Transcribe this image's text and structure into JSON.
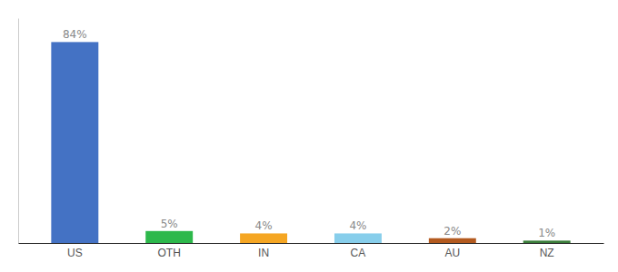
{
  "chart_data": {
    "type": "bar",
    "categories": [
      "US",
      "OTH",
      "IN",
      "CA",
      "AU",
      "NZ"
    ],
    "values": [
      84,
      5,
      4,
      4,
      2,
      1
    ],
    "value_labels": [
      "84%",
      "5%",
      "4%",
      "4%",
      "2%",
      "1%"
    ],
    "colors": [
      "#4472c4",
      "#2db84b",
      "#f5a623",
      "#87ceeb",
      "#b35a1f",
      "#3a7d3a"
    ],
    "ylim": [
      0,
      94
    ],
    "data_labels": true,
    "tick_labels": "x",
    "grid": false
  }
}
